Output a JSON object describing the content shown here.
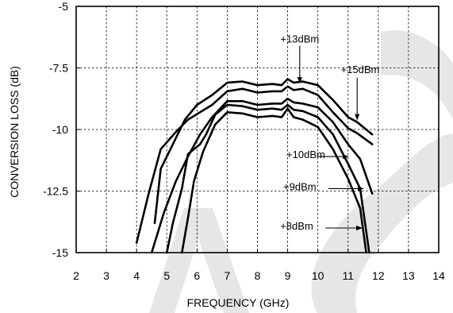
{
  "chart_data": {
    "type": "line",
    "xlabel": "FREQUENCY (GHz)",
    "ylabel": "CONVERSION LOSS (dB)",
    "xlim": [
      2,
      14
    ],
    "ylim": [
      -15,
      -5
    ],
    "xticks": [
      "2",
      "3",
      "4",
      "5",
      "6",
      "7",
      "8",
      "9",
      "10",
      "11",
      "12",
      "13",
      "14"
    ],
    "yticks": [
      "-5",
      "-7.5",
      "-10",
      "-12.5",
      "-15"
    ],
    "grid": true,
    "series": [
      {
        "name": "+13dBm",
        "points": [
          [
            4.6,
            -13.8
          ],
          [
            4.8,
            -11.6
          ],
          [
            5.2,
            -10.6
          ],
          [
            5.6,
            -9.6
          ],
          [
            6.0,
            -9.0
          ],
          [
            6.5,
            -8.6
          ],
          [
            7.0,
            -8.1
          ],
          [
            7.5,
            -8.05
          ],
          [
            8.0,
            -8.2
          ],
          [
            8.5,
            -8.15
          ],
          [
            8.8,
            -8.2
          ],
          [
            9.0,
            -7.95
          ],
          [
            9.2,
            -8.1
          ],
          [
            9.5,
            -8.05
          ],
          [
            10.0,
            -8.2
          ],
          [
            10.5,
            -8.8
          ],
          [
            11.0,
            -9.5
          ],
          [
            11.3,
            -9.7
          ],
          [
            11.8,
            -10.2
          ]
        ]
      },
      {
        "name": "+15dBm",
        "points": [
          [
            4.0,
            -14.6
          ],
          [
            4.4,
            -12.6
          ],
          [
            4.8,
            -10.8
          ],
          [
            5.3,
            -10.1
          ],
          [
            5.7,
            -9.6
          ],
          [
            6.1,
            -9.3
          ],
          [
            6.5,
            -9.0
          ],
          [
            7.0,
            -8.45
          ],
          [
            7.5,
            -8.35
          ],
          [
            8.0,
            -8.5
          ],
          [
            8.5,
            -8.45
          ],
          [
            8.8,
            -8.45
          ],
          [
            9.0,
            -8.25
          ],
          [
            9.2,
            -8.4
          ],
          [
            9.5,
            -8.35
          ],
          [
            10.0,
            -8.6
          ],
          [
            10.5,
            -9.3
          ],
          [
            11.0,
            -9.95
          ],
          [
            11.3,
            -10.15
          ],
          [
            11.8,
            -10.6
          ]
        ]
      },
      {
        "name": "+10dBm",
        "points": [
          [
            4.5,
            -15.0
          ],
          [
            4.9,
            -13.4
          ],
          [
            5.3,
            -12.1
          ],
          [
            5.7,
            -11.1
          ],
          [
            6.1,
            -10.2
          ],
          [
            6.5,
            -9.5
          ],
          [
            7.0,
            -8.85
          ],
          [
            7.5,
            -8.85
          ],
          [
            8.0,
            -9.0
          ],
          [
            8.5,
            -8.95
          ],
          [
            8.8,
            -8.95
          ],
          [
            9.0,
            -8.75
          ],
          [
            9.2,
            -8.9
          ],
          [
            9.5,
            -8.95
          ],
          [
            10.0,
            -9.1
          ],
          [
            10.5,
            -9.7
          ],
          [
            11.0,
            -10.6
          ],
          [
            11.4,
            -11.2
          ],
          [
            11.8,
            -12.6
          ]
        ]
      },
      {
        "name": "+9dBm",
        "points": [
          [
            5.0,
            -15.0
          ],
          [
            5.2,
            -13.8
          ],
          [
            5.5,
            -12.4
          ],
          [
            5.7,
            -11.0
          ],
          [
            6.1,
            -10.6
          ],
          [
            6.3,
            -10.2
          ],
          [
            6.6,
            -9.4
          ],
          [
            7.0,
            -9.0
          ],
          [
            7.5,
            -9.05
          ],
          [
            8.0,
            -9.2
          ],
          [
            8.5,
            -9.15
          ],
          [
            8.8,
            -9.2
          ],
          [
            9.0,
            -9.0
          ],
          [
            9.2,
            -9.2
          ],
          [
            9.5,
            -9.25
          ],
          [
            10.0,
            -9.5
          ],
          [
            10.5,
            -10.2
          ],
          [
            11.0,
            -11.4
          ],
          [
            11.4,
            -12.4
          ],
          [
            11.7,
            -15.0
          ]
        ]
      },
      {
        "name": "+8dBm",
        "points": [
          [
            5.5,
            -15.0
          ],
          [
            5.7,
            -13.6
          ],
          [
            5.9,
            -12.1
          ],
          [
            6.2,
            -10.9
          ],
          [
            6.6,
            -9.8
          ],
          [
            7.0,
            -9.3
          ],
          [
            7.5,
            -9.35
          ],
          [
            8.0,
            -9.5
          ],
          [
            8.5,
            -9.45
          ],
          [
            8.8,
            -9.5
          ],
          [
            9.0,
            -9.15
          ],
          [
            9.2,
            -9.5
          ],
          [
            9.5,
            -9.6
          ],
          [
            10.0,
            -9.9
          ],
          [
            10.5,
            -10.8
          ],
          [
            11.0,
            -12.0
          ],
          [
            11.4,
            -13.2
          ],
          [
            11.6,
            -15.0
          ]
        ]
      }
    ],
    "annotations": [
      {
        "text": "+13dBm",
        "label_at": [
          9.4,
          -6.3
        ],
        "arrow_from": [
          9.4,
          -6.6
        ],
        "arrow_to": [
          9.4,
          -8.1
        ]
      },
      {
        "text": "+15dBm",
        "label_at": [
          11.4,
          -7.55
        ],
        "arrow_from": [
          11.3,
          -7.9
        ],
        "arrow_to": [
          11.3,
          -9.6
        ]
      },
      {
        "text": "+10dBm",
        "label_at": [
          9.6,
          -11.0
        ],
        "arrow_from": [
          10.0,
          -11.1
        ],
        "arrow_to": [
          11.0,
          -11.1
        ]
      },
      {
        "text": "+9dBm",
        "label_at": [
          9.4,
          -12.3
        ],
        "arrow_from": [
          10.35,
          -12.4
        ],
        "arrow_to": [
          11.5,
          -12.4
        ]
      },
      {
        "text": "+8dBm",
        "label_at": [
          9.3,
          -13.9
        ],
        "arrow_from": [
          10.25,
          -14.0
        ],
        "arrow_to": [
          11.45,
          -14.0
        ]
      }
    ]
  }
}
